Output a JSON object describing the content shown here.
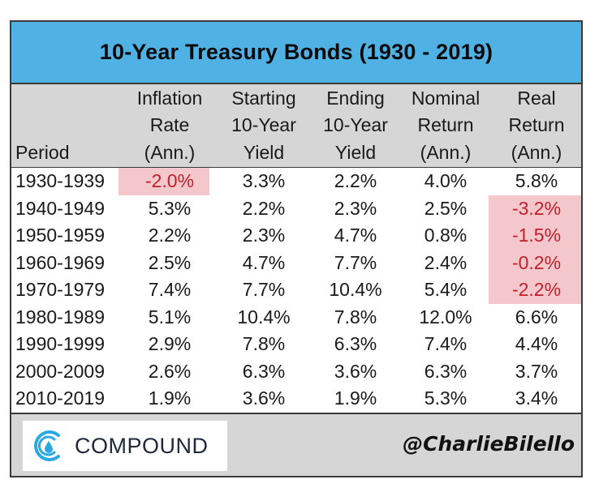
{
  "chart_data": {
    "type": "table",
    "title": "10-Year Treasury Bonds (1930 - 2019)",
    "columns": [
      [
        "",
        "",
        "Period"
      ],
      [
        "Inflation",
        "Rate",
        "(Ann.)"
      ],
      [
        "Starting",
        "10-Year",
        "Yield"
      ],
      [
        "Ending",
        "10-Year",
        "Yield"
      ],
      [
        "Nominal",
        "Return",
        "(Ann.)"
      ],
      [
        "Real",
        "Return",
        "(Ann.)"
      ]
    ],
    "rows": [
      [
        "1930-1939",
        "-2.0%",
        "3.3%",
        "2.2%",
        "4.0%",
        "5.8%"
      ],
      [
        "1940-1949",
        "5.3%",
        "2.2%",
        "2.3%",
        "2.5%",
        "-3.2%"
      ],
      [
        "1950-1959",
        "2.2%",
        "2.3%",
        "4.7%",
        "0.8%",
        "-1.5%"
      ],
      [
        "1960-1969",
        "2.5%",
        "4.7%",
        "7.7%",
        "2.4%",
        "-0.2%"
      ],
      [
        "1970-1979",
        "7.4%",
        "7.7%",
        "10.4%",
        "5.4%",
        "-2.2%"
      ],
      [
        "1980-1989",
        "5.1%",
        "10.4%",
        "7.8%",
        "12.0%",
        "6.6%"
      ],
      [
        "1990-1999",
        "2.9%",
        "7.8%",
        "6.3%",
        "7.4%",
        "4.4%"
      ],
      [
        "2000-2009",
        "2.6%",
        "6.3%",
        "3.6%",
        "6.3%",
        "3.7%"
      ],
      [
        "2010-2019",
        "1.9%",
        "3.6%",
        "1.9%",
        "5.3%",
        "3.4%"
      ]
    ],
    "highlighted_cells": [
      [
        0,
        1
      ],
      [
        1,
        5
      ],
      [
        2,
        5
      ],
      [
        3,
        5
      ],
      [
        4,
        5
      ]
    ],
    "colors": {
      "title_bg": "#4fb1e4",
      "header_bg": "#d6d6d6",
      "highlight_bg": "#f4c7cd",
      "negative_text": "#c0202a"
    }
  },
  "footer": {
    "logo_text": "COMPOUND",
    "handle": "@CharlieBilello",
    "logo_icon": "compound-logo-icon"
  }
}
